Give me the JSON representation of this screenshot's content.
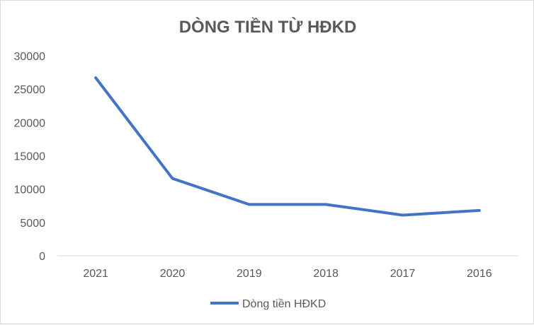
{
  "chart_data": {
    "type": "line",
    "title": "DÒNG TIỀN TỪ HĐKD",
    "categories": [
      "2021",
      "2020",
      "2019",
      "2018",
      "2017",
      "2016"
    ],
    "series": [
      {
        "name": "Dòng tiền HĐKD",
        "color": "#4472c4",
        "values": [
          26700,
          11600,
          7700,
          7700,
          6100,
          6800
        ]
      }
    ],
    "y_ticks": [
      "0",
      "5000",
      "10000",
      "15000",
      "20000",
      "25000",
      "30000"
    ],
    "ylim": [
      0,
      30000
    ],
    "grid": false,
    "legend_position": "bottom"
  }
}
